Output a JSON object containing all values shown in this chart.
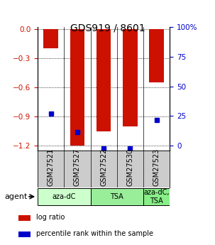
{
  "title": "GDS919 / 8601",
  "samples": [
    "GSM27521",
    "GSM27527",
    "GSM27522",
    "GSM27530",
    "GSM27523"
  ],
  "log_ratios": [
    -0.2,
    -1.2,
    -1.05,
    -1.0,
    -0.55
  ],
  "percentile_ranks": [
    30.0,
    15.0,
    2.0,
    2.0,
    25.0
  ],
  "bar_color": "#cc1100",
  "percentile_color": "#0000cc",
  "ylim_left": [
    -1.25,
    0.02
  ],
  "ylim_right": [
    -4.17,
    100
  ],
  "yticks_left": [
    0.0,
    -0.3,
    -0.6,
    -0.9,
    -1.2
  ],
  "yticks_right": [
    0,
    25,
    50,
    75,
    100
  ],
  "agent_groups": [
    {
      "label": "aza-dC",
      "indices": [
        0,
        1
      ],
      "color": "#ccffcc"
    },
    {
      "label": "TSA",
      "indices": [
        2,
        3
      ],
      "color": "#99ee99"
    },
    {
      "label": "aza-dC,\nTSA",
      "indices": [
        4
      ],
      "color": "#88ee88"
    }
  ],
  "legend_items": [
    {
      "label": "log ratio",
      "color": "#cc1100"
    },
    {
      "label": "percentile rank within the sample",
      "color": "#0000cc"
    }
  ],
  "background_color": "#ffffff",
  "left_tick_color": "#cc1100",
  "right_tick_color": "#0000cc",
  "bar_width": 0.55,
  "sample_bg": "#cccccc"
}
